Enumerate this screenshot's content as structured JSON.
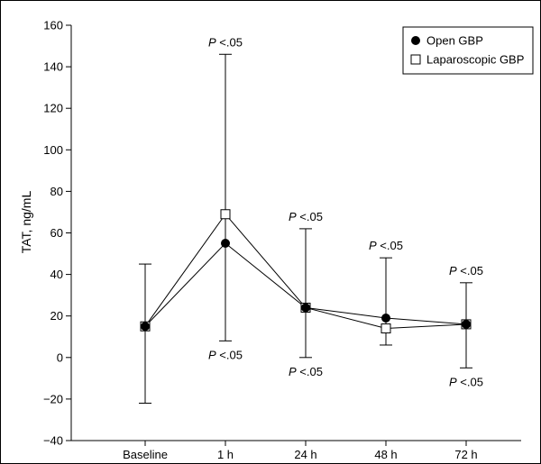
{
  "chart_data": {
    "type": "line",
    "title": "",
    "xlabel": "",
    "ylabel": "TAT, ng/mL",
    "ylim": [
      -40,
      160
    ],
    "yticks": [
      -40,
      -20,
      0,
      20,
      40,
      60,
      80,
      100,
      120,
      140,
      160
    ],
    "ytick_labels": [
      "−40",
      "−20",
      "0",
      "20",
      "40",
      "60",
      "80",
      "100",
      "120",
      "140",
      "160"
    ],
    "categories": [
      "Baseline",
      "1 h",
      "24 h",
      "48 h",
      "72 h"
    ],
    "grid": false,
    "legend_position": "top-right",
    "series": [
      {
        "name": "Open GBP",
        "marker": "filled-circle",
        "values": [
          15,
          55,
          24,
          19,
          16
        ]
      },
      {
        "name": "Laparoscopic GBP",
        "marker": "open-square",
        "values": [
          15,
          69,
          24,
          14,
          16
        ]
      }
    ],
    "error_bars": [
      {
        "category": "Baseline",
        "upper": 45,
        "lower": -22
      },
      {
        "category": "1 h",
        "upper": 146,
        "lower": 8
      },
      {
        "category": "24 h",
        "upper": 62,
        "lower": 0
      },
      {
        "category": "48 h",
        "upper": 48,
        "lower": 6
      },
      {
        "category": "72 h",
        "upper": 36,
        "lower": -5
      }
    ],
    "annotations": [
      {
        "category": "1 h",
        "p": "P",
        "rest": "<.05",
        "at_value": 146,
        "position": "above"
      },
      {
        "category": "1 h",
        "p": "P",
        "rest": "<.05",
        "at_value": 8,
        "position": "below"
      },
      {
        "category": "24 h",
        "p": "P",
        "rest": "<.05",
        "at_value": 62,
        "position": "above"
      },
      {
        "category": "24 h",
        "p": "P",
        "rest": "<.05",
        "at_value": 0,
        "position": "below"
      },
      {
        "category": "48 h",
        "p": "P",
        "rest": "<.05",
        "at_value": 48,
        "position": "above"
      },
      {
        "category": "72 h",
        "p": "P",
        "rest": "<.05",
        "at_value": 36,
        "position": "above"
      },
      {
        "category": "72 h",
        "p": "P",
        "rest": "<.05",
        "at_value": -5,
        "position": "below"
      }
    ]
  }
}
